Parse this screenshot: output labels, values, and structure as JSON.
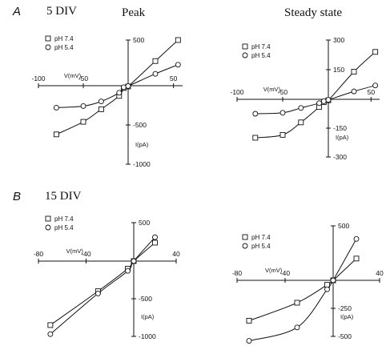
{
  "figure": {
    "panel_a": {
      "letter": "A",
      "label": "5 DIV"
    },
    "panel_b": {
      "letter": "B",
      "label": "15 DIV"
    },
    "column_titles": [
      "Peak",
      "Steady state"
    ]
  },
  "chart_data": [
    {
      "type": "scatter",
      "title": "Peak",
      "xlabel": "V(mV)",
      "ylabel": "I(pA)",
      "xlim": [
        -100,
        60
      ],
      "ylim": [
        -1000,
        500
      ],
      "xticks": [
        -100,
        -50,
        50
      ],
      "yticks": [
        500,
        -500,
        -1000
      ],
      "legend": [
        "pH 7.4",
        "pH 5.4"
      ],
      "series": [
        {
          "name": "pH 7.4",
          "marker": "square",
          "x": [
            -80,
            -50,
            -30,
            -10,
            -5,
            0,
            30,
            55
          ],
          "y": [
            -620,
            -460,
            -300,
            -130,
            -30,
            -10,
            270,
            500
          ]
        },
        {
          "name": "pH 5.4",
          "marker": "circle",
          "x": [
            -80,
            -50,
            -30,
            -10,
            -5,
            0,
            30,
            55
          ],
          "y": [
            -280,
            -260,
            -200,
            -90,
            -20,
            -5,
            130,
            230
          ]
        }
      ]
    },
    {
      "type": "scatter",
      "title": "Steady state",
      "xlabel": "V(mV)",
      "ylabel": "I(pA)",
      "xlim": [
        -100,
        60
      ],
      "ylim": [
        -300,
        300
      ],
      "xticks": [
        -100,
        -50,
        50
      ],
      "yticks": [
        300,
        150,
        -150,
        -300
      ],
      "legend": [
        "pH 7.4",
        "pH 5.4"
      ],
      "series": [
        {
          "name": "pH 7.4",
          "marker": "square",
          "x": [
            -80,
            -50,
            -30,
            -10,
            -5,
            0,
            30,
            55
          ],
          "y": [
            -200,
            -185,
            -120,
            -40,
            -15,
            -5,
            140,
            240
          ]
        },
        {
          "name": "pH 5.4",
          "marker": "circle",
          "x": [
            -80,
            -50,
            -30,
            -10,
            -5,
            0,
            30,
            55
          ],
          "y": [
            -75,
            -70,
            -45,
            -20,
            -10,
            -3,
            40,
            70
          ]
        }
      ]
    },
    {
      "type": "scatter",
      "title": "",
      "xlabel": "V(mV)",
      "ylabel": "I(pA)",
      "xlim": [
        -80,
        40
      ],
      "ylim": [
        -1000,
        500
      ],
      "xticks": [
        -80,
        -40,
        40
      ],
      "yticks": [
        500,
        -500,
        -1000
      ],
      "legend": [
        "pH 7.4",
        "pH 5.4"
      ],
      "series": [
        {
          "name": "pH 7.4",
          "marker": "square",
          "x": [
            -70,
            -30,
            -5,
            0,
            20
          ],
          "y": [
            -850,
            -400,
            -100,
            0,
            240
          ]
        },
        {
          "name": "pH 5.4",
          "marker": "circle",
          "x": [
            -70,
            -30,
            -5,
            0,
            20
          ],
          "y": [
            -970,
            -430,
            -130,
            0,
            310
          ]
        }
      ]
    },
    {
      "type": "scatter",
      "title": "",
      "xlabel": "V(mV)",
      "ylabel": "I(pA)",
      "xlim": [
        -80,
        40
      ],
      "ylim": [
        -500,
        500
      ],
      "xticks": [
        -80,
        -40,
        40
      ],
      "yticks": [
        500,
        -250,
        -500
      ],
      "legend": [
        "pH 7.4",
        "pH 5.4"
      ],
      "series": [
        {
          "name": "pH 7.4",
          "marker": "square",
          "x": [
            -70,
            -30,
            -5,
            0,
            20
          ],
          "y": [
            -360,
            -200,
            -40,
            0,
            200
          ]
        },
        {
          "name": "pH 5.4",
          "marker": "circle",
          "x": [
            -70,
            -30,
            -5,
            0,
            20
          ],
          "y": [
            -540,
            -420,
            -80,
            0,
            380
          ]
        }
      ]
    }
  ]
}
